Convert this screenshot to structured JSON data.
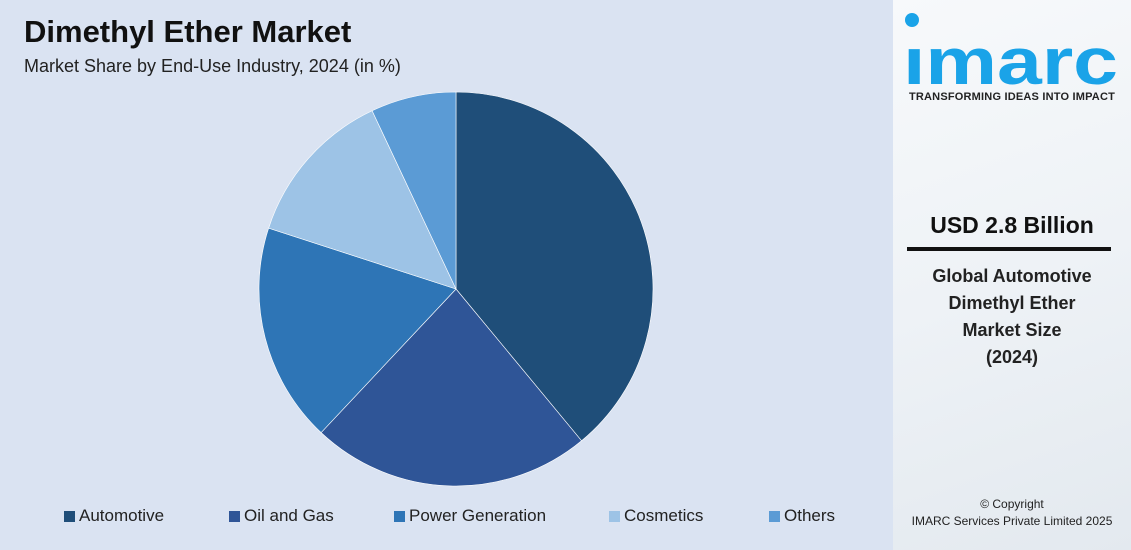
{
  "chart_data": {
    "type": "pie",
    "title": "Dimethyl Ether Market",
    "subtitle": "Market Share by End-Use Industry, 2024 (in %)",
    "categories": [
      "Automotive",
      "Oil and Gas",
      "Power Generation",
      "Cosmetics",
      "Others"
    ],
    "values": [
      39,
      23,
      18,
      13,
      7
    ],
    "colors": [
      "#1f4e79",
      "#2f5597",
      "#2e75b6",
      "#9dc3e6",
      "#5b9bd5"
    ],
    "start_angle": "12 o'clock, clockwise",
    "legend_position": "bottom"
  },
  "sidebar": {
    "logo_text": "imarc",
    "tagline": "TRANSFORMING IDEAS INTO IMPACT",
    "value": "USD 2.8 Billion",
    "description_lines": [
      "Global Automotive",
      "Dimethyl Ether",
      "Market Size",
      "(2024)"
    ],
    "copyright_lines": [
      "© Copyright",
      "IMARC Services Private Limited 2025"
    ],
    "brand_color": "#1aa3e8"
  }
}
